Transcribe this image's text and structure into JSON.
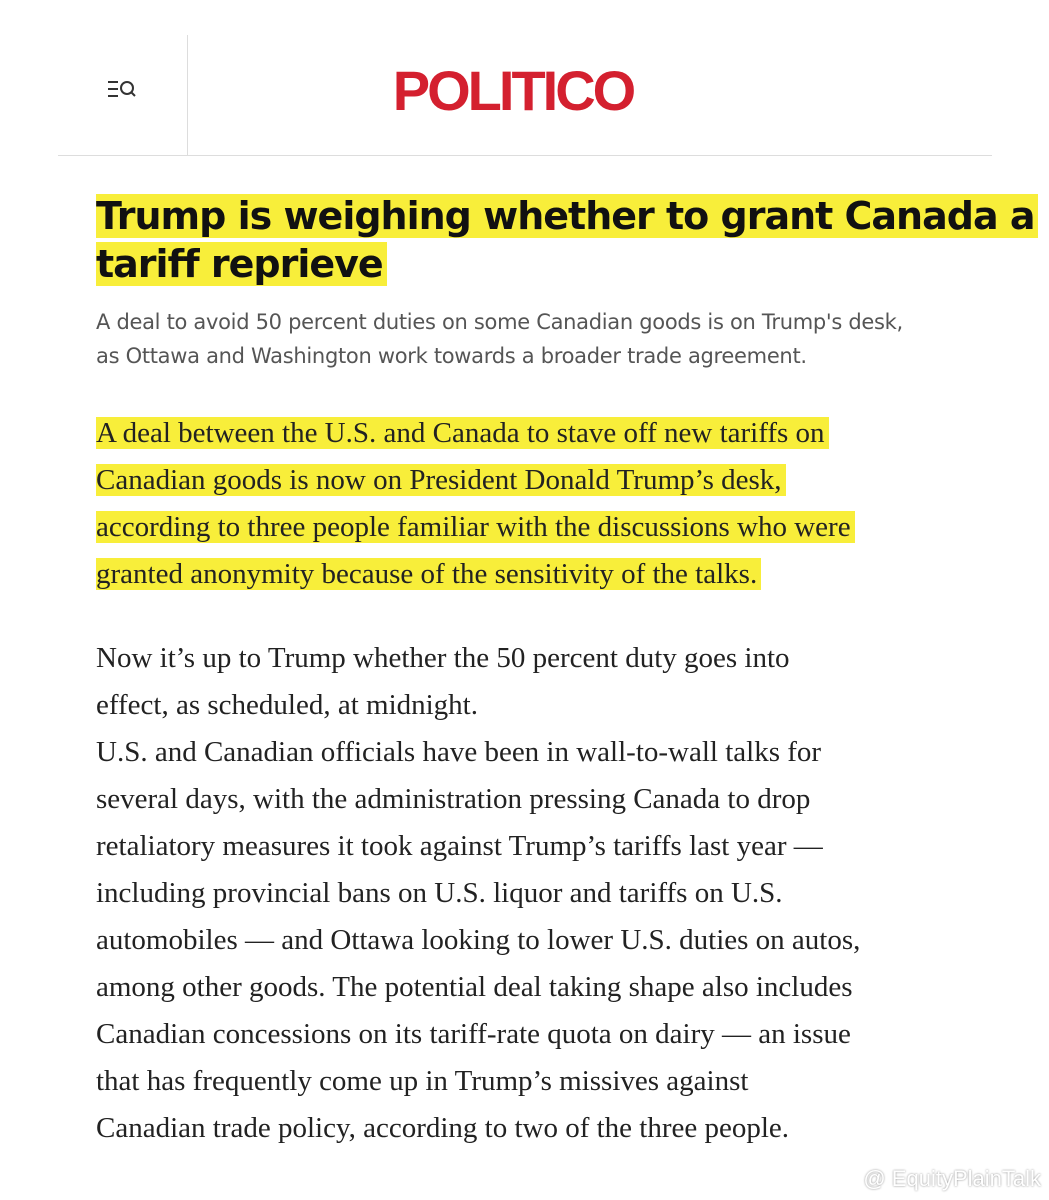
{
  "header": {
    "logo": "POLITICO"
  },
  "article": {
    "headline_lines": [
      "Trump is weighing whether to grant Canada a",
      "tariff reprieve"
    ],
    "subhead_lines": [
      "A deal to avoid 50 percent duties on some Canadian goods is on Trump's desk,",
      "as Ottawa and Washington work towards a broader trade agreement."
    ],
    "paragraphs": [
      {
        "highlighted": true,
        "lines": [
          "A deal between the U.S. and Canada to stave off new tariffs on",
          "Canadian goods is now on President Donald Trump’s desk,",
          "according to three people familiar with the discussions who were",
          "granted anonymity because of the sensitivity of the talks."
        ]
      },
      {
        "highlighted": false,
        "lines": [
          "Now it’s up to Trump whether the 50 percent duty goes into",
          "effect, as scheduled, at midnight."
        ]
      },
      {
        "highlighted": false,
        "lines": [
          "U.S. and Canadian officials have been in wall-to-wall talks for",
          "several days, with the administration pressing Canada to drop",
          "retaliatory measures it took against Trump’s tariffs last year —",
          "including provincial bans on U.S. liquor and tariffs on U.S.",
          "automobiles — and Ottawa looking to lower U.S. duties on autos,",
          "among other goods. The potential deal taking shape also includes",
          "Canadian concessions on its tariff-rate quota on dairy — an issue",
          "that has frequently come up in Trump’s missives against",
          "Canadian trade policy, according to two of the three people."
        ]
      }
    ]
  },
  "watermark": "@ EquityPlainTalk"
}
